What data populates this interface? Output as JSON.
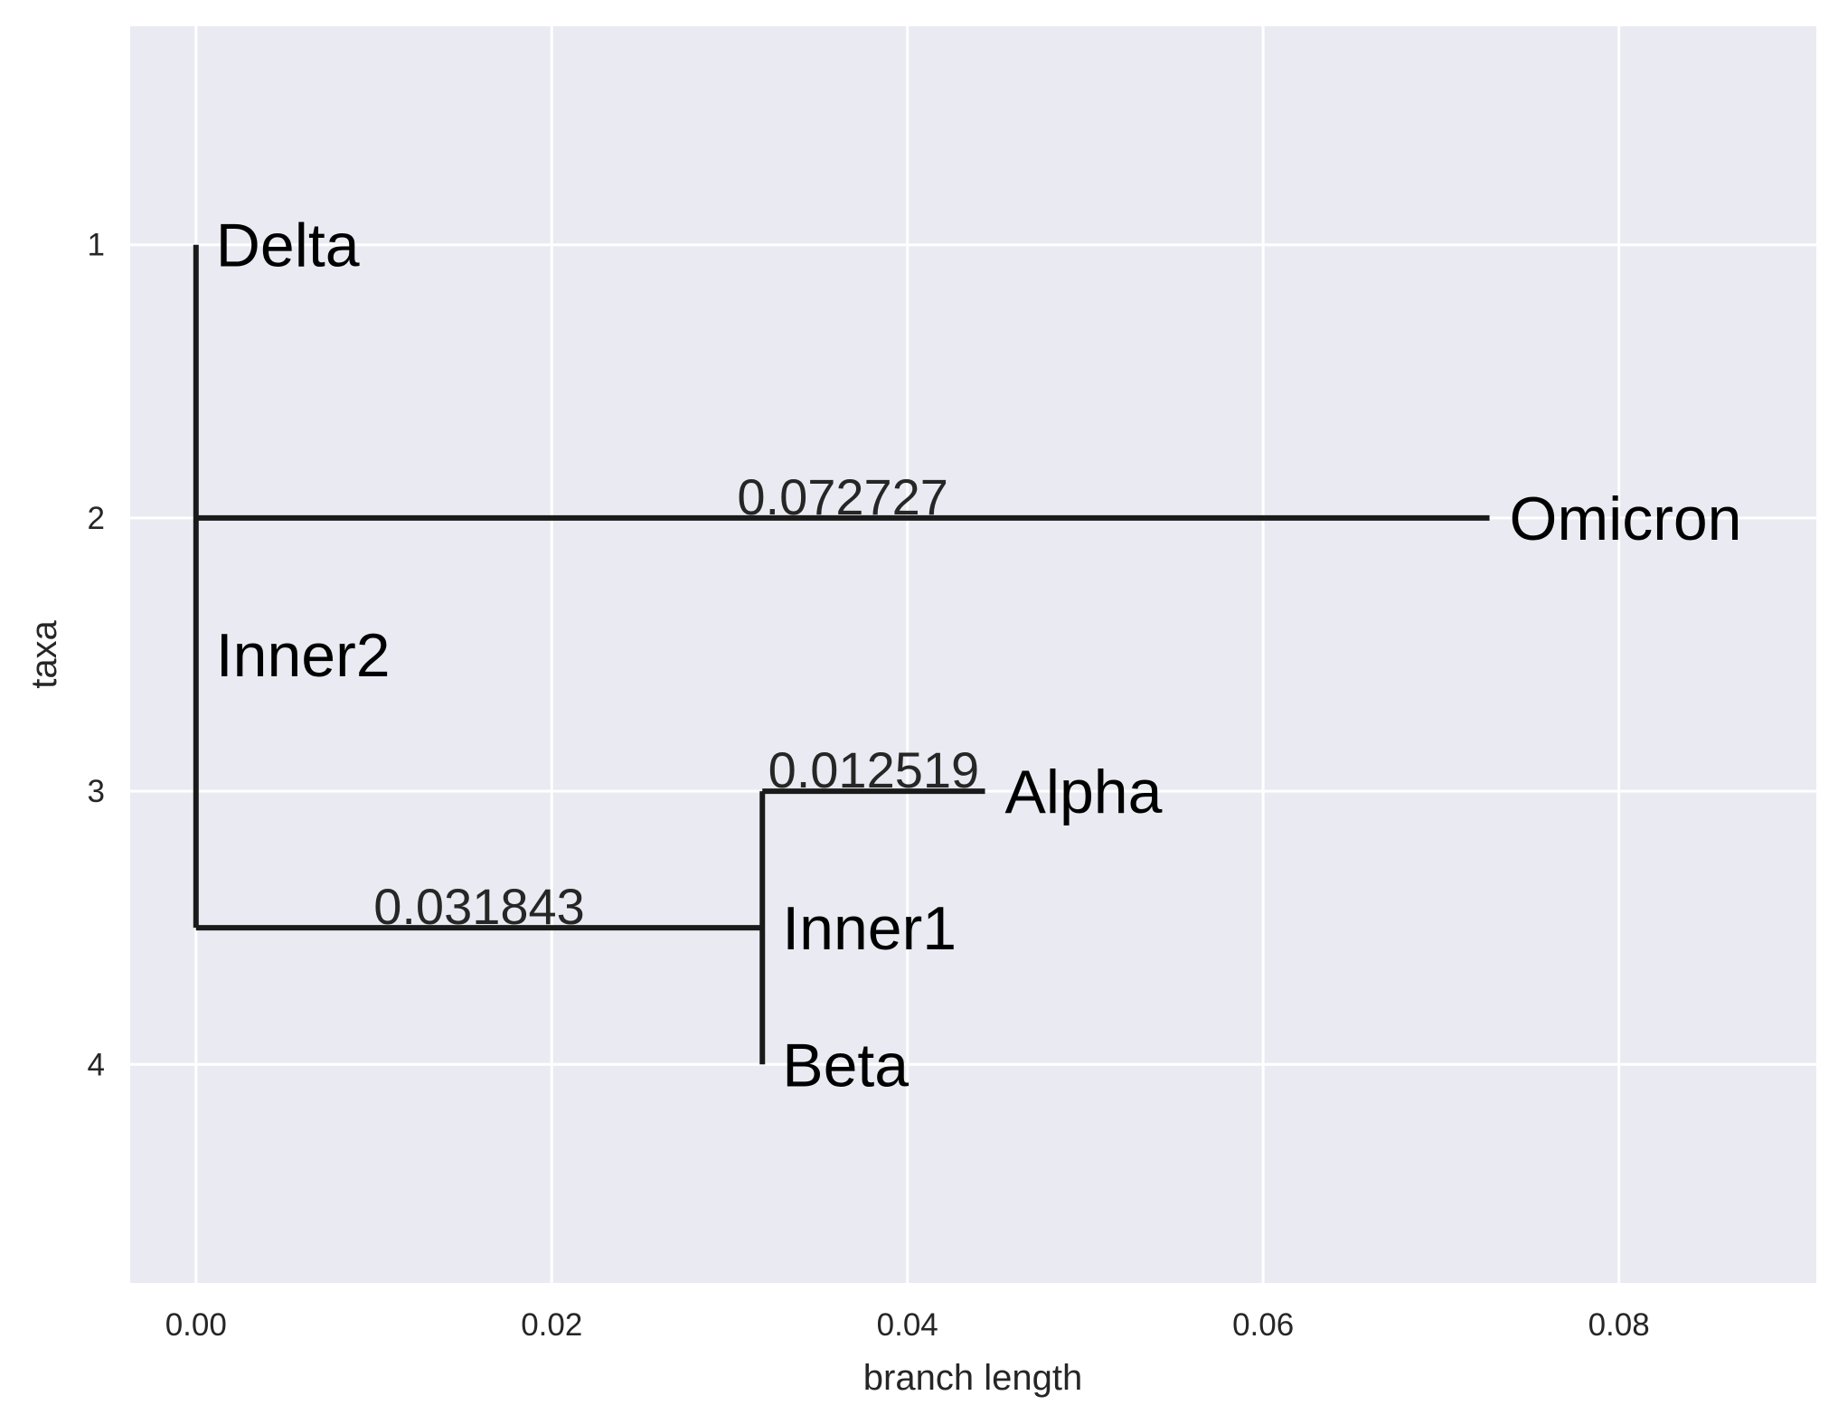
{
  "chart_data": {
    "type": "tree",
    "xlabel": "branch length",
    "ylabel": "taxa",
    "xlim": [
      -0.0037,
      0.0911
    ],
    "ylim": [
      4.8,
      0.2
    ],
    "xticks": [
      0.0,
      0.02,
      0.04,
      0.06,
      0.08
    ],
    "xtick_labels": [
      "0.00",
      "0.02",
      "0.04",
      "0.06",
      "0.08"
    ],
    "yticks": [
      1,
      2,
      3,
      4
    ],
    "ytick_labels": [
      "1",
      "2",
      "3",
      "4"
    ],
    "grid": true,
    "colors": {
      "background": "#eaeaf2",
      "grid": "#ffffff",
      "branch": "#1a1a1a"
    },
    "nodes": [
      {
        "name": "Delta",
        "x": 0.0,
        "y": 1
      },
      {
        "name": "Omicron",
        "x": 0.072727,
        "y": 2
      },
      {
        "name": "Inner2",
        "x": 0.0,
        "y": 2.5
      },
      {
        "name": "Alpha",
        "x": 0.044362,
        "y": 3
      },
      {
        "name": "Inner1",
        "x": 0.031843,
        "y": 3.5
      },
      {
        "name": "Beta",
        "x": 0.031843,
        "y": 4
      }
    ],
    "branches": [
      {
        "parent": "Inner2",
        "child": "Delta",
        "length": 0.0,
        "label": ""
      },
      {
        "parent": "Inner2",
        "child": "Omicron",
        "length": 0.072727,
        "label": "0.072727"
      },
      {
        "parent": "Inner2",
        "child": "Inner1",
        "length": 0.031843,
        "label": "0.031843"
      },
      {
        "parent": "Inner1",
        "child": "Alpha",
        "length": 0.012519,
        "label": "0.012519"
      },
      {
        "parent": "Inner1",
        "child": "Beta",
        "length": 0.0,
        "label": ""
      }
    ]
  }
}
